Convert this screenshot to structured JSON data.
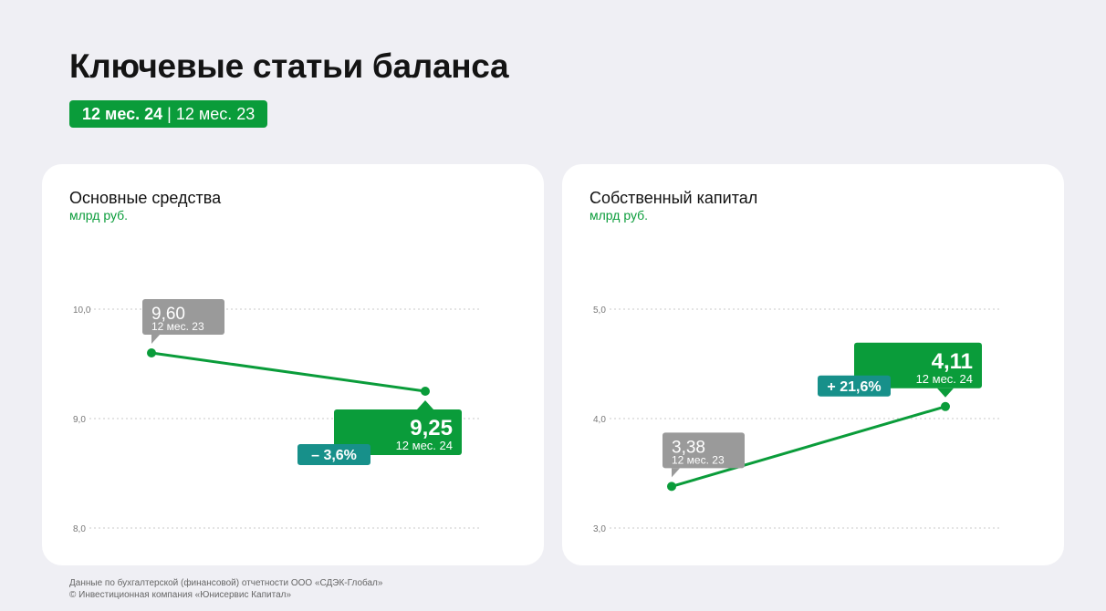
{
  "page": {
    "title": "Ключевые статьи баланса",
    "period_current": "12 мес. 24",
    "period_separator": "|",
    "period_previous": "12 мес. 23"
  },
  "footer": {
    "line1": "Данные по бухгалтерской (финансовой) отчетности ООО «СДЭК-Глобал»",
    "line2": "© Инвестиционная компания «Юнисервис Капитал»"
  },
  "colors": {
    "accent": "#0a9c3a",
    "previous": "#9a9a9a",
    "change": "#17908a",
    "grid": "#c9c9c9"
  },
  "chart_data": [
    {
      "type": "line",
      "title": "Основные средства",
      "ylabel": "млрд руб.",
      "ylim": [
        8.0,
        10.0
      ],
      "yticks": [
        "10,0",
        "9,0",
        "8,0"
      ],
      "ytick_values": [
        10.0,
        9.0,
        8.0
      ],
      "x": [
        "12 мес. 23",
        "12 мес. 24"
      ],
      "values": [
        9.6,
        9.25
      ],
      "value_labels": [
        "9,60",
        "9,25"
      ],
      "change_label": "– 3,6%"
    },
    {
      "type": "line",
      "title": "Собственный капитал",
      "ylabel": "млрд руб.",
      "ylim": [
        3.0,
        5.0
      ],
      "yticks": [
        "5,0",
        "4,0",
        "3,0"
      ],
      "ytick_values": [
        5.0,
        4.0,
        3.0
      ],
      "x": [
        "12 мес. 23",
        "12 мес. 24"
      ],
      "values": [
        3.38,
        4.11
      ],
      "value_labels": [
        "3,38",
        "4,11"
      ],
      "change_label": "+ 21,6%"
    }
  ]
}
